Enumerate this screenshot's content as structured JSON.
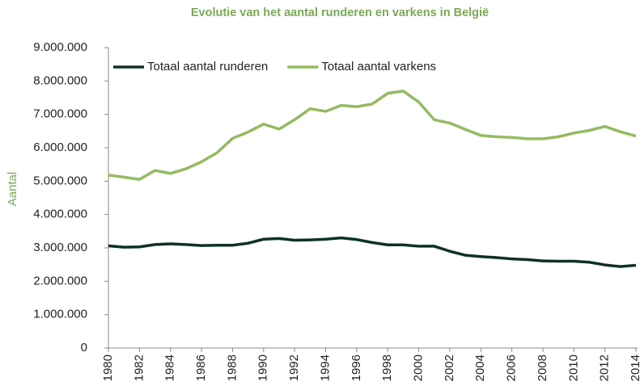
{
  "chart_data": {
    "type": "line",
    "title": "Evolutie van het aantal runderen en varkens in België",
    "y_label": "Aantal",
    "x": [
      1980,
      1981,
      1982,
      1983,
      1984,
      1985,
      1986,
      1987,
      1988,
      1989,
      1990,
      1991,
      1992,
      1993,
      1994,
      1995,
      1996,
      1997,
      1998,
      1999,
      2000,
      2001,
      2002,
      2003,
      2004,
      2005,
      2006,
      2007,
      2008,
      2009,
      2010,
      2011,
      2012,
      2013,
      2014
    ],
    "xlim": [
      1980,
      2014
    ],
    "xticks": [
      1980,
      1982,
      1984,
      1986,
      1988,
      1990,
      1992,
      1994,
      1996,
      1998,
      2000,
      2002,
      2004,
      2006,
      2008,
      2010,
      2012,
      2014
    ],
    "ylim": [
      0,
      9000000
    ],
    "yticks": [
      0,
      {
        "value": 1000000,
        "label": "1.000.000"
      },
      {
        "value": 2000000,
        "label": "2.000.000"
      },
      {
        "value": 3000000,
        "label": "3.000.000"
      },
      {
        "value": 4000000,
        "label": "4.000.000"
      },
      {
        "value": 5000000,
        "label": "5.000.000"
      },
      {
        "value": 6000000,
        "label": "6.000.000"
      },
      {
        "value": 7000000,
        "label": "7.000.000"
      },
      {
        "value": 8000000,
        "label": "8.000.000"
      },
      {
        "value": 9000000,
        "label": "9.000.000"
      }
    ],
    "grid": false,
    "legend": "top-left",
    "series": [
      {
        "name": "Totaal aantal runderen",
        "color": "#0d3320",
        "values": [
          3060000,
          3020000,
          3030000,
          3100000,
          3120000,
          3100000,
          3070000,
          3080000,
          3080000,
          3140000,
          3260000,
          3280000,
          3230000,
          3240000,
          3260000,
          3300000,
          3250000,
          3160000,
          3090000,
          3090000,
          3050000,
          3050000,
          2900000,
          2780000,
          2740000,
          2710000,
          2670000,
          2650000,
          2610000,
          2600000,
          2600000,
          2570000,
          2490000,
          2440000,
          2480000
        ]
      },
      {
        "name": "Totaal aantal varkens",
        "color": "#93bb61",
        "values": [
          5180000,
          5120000,
          5050000,
          5320000,
          5230000,
          5370000,
          5580000,
          5850000,
          6280000,
          6470000,
          6710000,
          6560000,
          6840000,
          7170000,
          7090000,
          7270000,
          7230000,
          7310000,
          7630000,
          7700000,
          7370000,
          6840000,
          6740000,
          6550000,
          6370000,
          6330000,
          6310000,
          6270000,
          6270000,
          6330000,
          6440000,
          6520000,
          6640000,
          6480000,
          6350000
        ]
      }
    ]
  }
}
